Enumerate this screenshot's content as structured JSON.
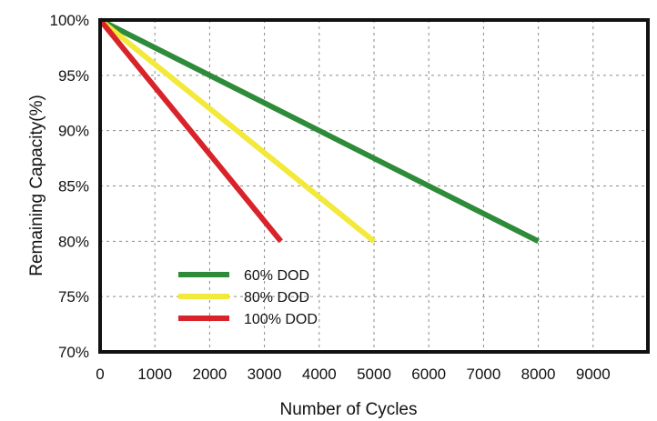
{
  "chart_data": {
    "type": "line",
    "title": "",
    "xlabel": "Number of Cycles",
    "ylabel": "Remaining Capacity(%)",
    "xlim": [
      0,
      10000
    ],
    "ylim": [
      70,
      100
    ],
    "x_ticks": [
      0,
      1000,
      2000,
      3000,
      4000,
      5000,
      6000,
      7000,
      8000,
      9000
    ],
    "x_tick_labels": [
      "0",
      "1000",
      "2000",
      "3000",
      "4000",
      "5000",
      "6000",
      "7000",
      "8000",
      "9000"
    ],
    "y_ticks": [
      70,
      75,
      80,
      85,
      90,
      95,
      100
    ],
    "y_tick_labels": [
      "70%",
      "75%",
      "80%",
      "85%",
      "90%",
      "95%",
      "100%"
    ],
    "grid": true,
    "grid_style": "dashed",
    "legend_position": "bottom-left",
    "series": [
      {
        "name": "60% DOD",
        "color": "#2e8b3a",
        "x": [
          0,
          8000
        ],
        "y": [
          100,
          80
        ]
      },
      {
        "name": "80% DOD",
        "color": "#f2e93a",
        "x": [
          0,
          5000
        ],
        "y": [
          100,
          80
        ]
      },
      {
        "name": "100% DOD",
        "color": "#d9232b",
        "x": [
          0,
          3300
        ],
        "y": [
          100,
          80
        ]
      }
    ]
  }
}
